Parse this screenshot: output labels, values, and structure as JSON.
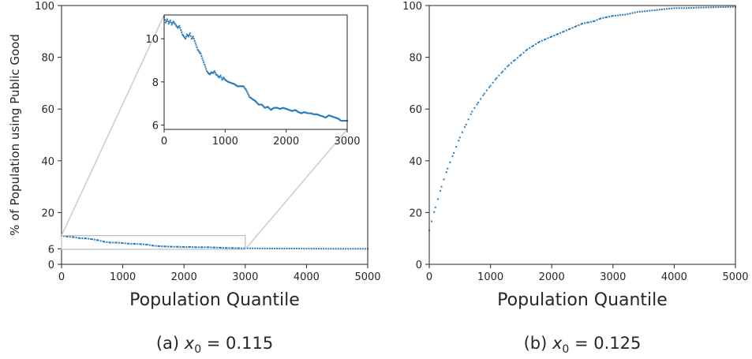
{
  "ylabel_shared": "% of Population using Public Good",
  "captions": {
    "a_prefix": "(a) ",
    "a_var": "x",
    "a_sub": "0",
    "a_eq": " = 0.115",
    "b_prefix": "(b) ",
    "b_var": "x",
    "b_sub": "0",
    "b_eq": " = 0.125"
  },
  "chart_data": [
    {
      "id": "a",
      "type": "scatter",
      "xlabel": "Population Quantile",
      "ylabel": "% of Population using Public Good",
      "xlim": [
        0,
        5000
      ],
      "ylim": [
        0,
        100
      ],
      "xticks": [
        0,
        1000,
        2000,
        3000,
        4000,
        5000
      ],
      "yticks": [
        0,
        6,
        20,
        40,
        60,
        80,
        100
      ],
      "color": "#2b7bba",
      "series": [
        {
          "x": [
            0,
            100,
            200,
            300,
            400,
            500,
            600,
            700,
            800,
            900,
            1000,
            1100,
            1200,
            1300,
            1400,
            1500,
            1600,
            1700,
            1800,
            1900,
            2000,
            2100,
            2200,
            2300,
            2400,
            2500,
            2600,
            2700,
            2800,
            2900,
            3000,
            3200,
            3400,
            3600,
            3800,
            4000,
            4200,
            4400,
            4600,
            4800,
            5000
          ],
          "y": [
            11.0,
            10.7,
            10.5,
            10.1,
            10.0,
            9.7,
            9.3,
            8.7,
            8.4,
            8.4,
            8.2,
            8.0,
            7.9,
            7.8,
            7.6,
            7.2,
            7.0,
            6.9,
            6.8,
            6.8,
            6.7,
            6.7,
            6.6,
            6.6,
            6.6,
            6.5,
            6.4,
            6.3,
            6.3,
            6.2,
            6.2,
            6.15,
            6.1,
            6.1,
            6.1,
            6.05,
            6.05,
            6.0,
            6.0,
            6.0,
            6.0
          ]
        }
      ],
      "inset": {
        "xlim": [
          0,
          3000
        ],
        "ylim": [
          5.8,
          11.1
        ],
        "xticks": [
          0,
          1000,
          2000,
          3000
        ],
        "yticks": [
          6,
          8,
          10
        ],
        "x": [
          0,
          25,
          50,
          75,
          100,
          125,
          150,
          175,
          200,
          225,
          250,
          275,
          300,
          325,
          350,
          375,
          400,
          425,
          450,
          475,
          500,
          525,
          550,
          575,
          600,
          625,
          650,
          675,
          700,
          725,
          750,
          775,
          800,
          825,
          850,
          875,
          900,
          925,
          950,
          975,
          1000,
          1050,
          1100,
          1150,
          1200,
          1250,
          1300,
          1350,
          1400,
          1450,
          1500,
          1550,
          1600,
          1650,
          1700,
          1750,
          1800,
          1850,
          1900,
          1950,
          2000,
          2050,
          2100,
          2150,
          2200,
          2250,
          2300,
          2350,
          2400,
          2450,
          2500,
          2550,
          2600,
          2650,
          2700,
          2750,
          2800,
          2850,
          2900,
          2950,
          3000
        ],
        "y": [
          11.0,
          10.75,
          10.9,
          10.7,
          10.85,
          10.65,
          10.8,
          10.7,
          10.6,
          10.5,
          10.6,
          10.4,
          10.2,
          10.1,
          10.0,
          10.2,
          10.1,
          10.25,
          10.0,
          10.1,
          9.9,
          9.7,
          9.5,
          9.4,
          9.3,
          9.1,
          8.9,
          8.7,
          8.5,
          8.4,
          8.35,
          8.45,
          8.4,
          8.5,
          8.35,
          8.3,
          8.2,
          8.3,
          8.1,
          8.2,
          8.1,
          8.0,
          7.95,
          7.9,
          7.8,
          7.8,
          7.8,
          7.6,
          7.3,
          7.2,
          7.1,
          6.95,
          6.95,
          6.8,
          6.85,
          6.7,
          6.8,
          6.8,
          6.75,
          6.8,
          6.75,
          6.7,
          6.65,
          6.7,
          6.6,
          6.55,
          6.6,
          6.55,
          6.55,
          6.5,
          6.5,
          6.45,
          6.4,
          6.35,
          6.45,
          6.4,
          6.35,
          6.3,
          6.2,
          6.2,
          6.2
        ]
      }
    },
    {
      "id": "b",
      "type": "scatter",
      "xlabel": "Population Quantile",
      "ylabel": "",
      "xlim": [
        0,
        5000
      ],
      "ylim": [
        0,
        100
      ],
      "xticks": [
        0,
        1000,
        2000,
        3000,
        4000,
        5000
      ],
      "yticks": [
        0,
        20,
        40,
        60,
        80,
        100
      ],
      "color": "#2b7bba",
      "series": [
        {
          "x": [
            0,
            100,
            200,
            300,
            400,
            500,
            600,
            700,
            800,
            900,
            1000,
            1100,
            1200,
            1300,
            1400,
            1500,
            1600,
            1700,
            1800,
            1900,
            2000,
            2100,
            2200,
            2300,
            2400,
            2500,
            2600,
            2700,
            2800,
            2900,
            3000,
            3200,
            3400,
            3600,
            3800,
            4000,
            4200,
            4400,
            4600,
            4800,
            5000
          ],
          "y": [
            13,
            22,
            30,
            37,
            43,
            49,
            54,
            59,
            62.5,
            66,
            69,
            72,
            74.5,
            77,
            79,
            81,
            83,
            84.5,
            86,
            87,
            88,
            89,
            90,
            91,
            92,
            93,
            93.5,
            94,
            95,
            95.5,
            96,
            96.5,
            97.5,
            98,
            98.5,
            99,
            99,
            99.2,
            99.3,
            99.4,
            99.5
          ]
        }
      ]
    }
  ]
}
